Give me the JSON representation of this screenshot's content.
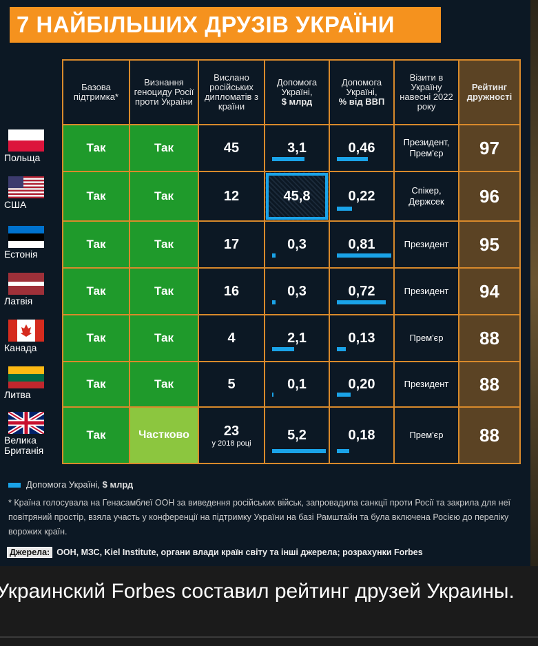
{
  "title": "7 НАЙБІЛЬШИХ ДРУЗІВ УКРАЇНИ",
  "colors": {
    "title_bg": "#f5921e",
    "yes": "#1f9a2b",
    "partial": "#8cc63f",
    "rating_bg": "#5b4324",
    "bar": "#1aa3e8",
    "grid": "#d98a2b",
    "bg": "#0c1824"
  },
  "chart_data": {
    "type": "table",
    "columns": [
      {
        "label": "Базова підтримка*"
      },
      {
        "label": "Визнання геноциду Росії проти України"
      },
      {
        "label": "Вислано російських дипломатів з країни"
      },
      {
        "label": "Допомога Україні,",
        "unit": "$ млрд"
      },
      {
        "label": "Допомога Україні,",
        "unit": "% від ВВП"
      },
      {
        "label": "Візити в Україну навесні 2022 року"
      },
      {
        "label": "Рейтинг дружності"
      }
    ],
    "rows": [
      {
        "country": "Польща",
        "flag": "poland-flag",
        "support": "Так",
        "genocide": "Так",
        "diplomats": "45",
        "diplomats_note": "",
        "aid_usd": "3,1",
        "aid_usd_value": 3.1,
        "aid_gdp": "0,46",
        "aid_gdp_value": 0.46,
        "visits": "Президент, Прем'єр",
        "rating": "97"
      },
      {
        "country": "США",
        "flag": "usa-flag",
        "support": "Так",
        "genocide": "Так",
        "diplomats": "12",
        "diplomats_note": "",
        "aid_usd": "45,8",
        "aid_usd_value": 45.8,
        "aid_usd_highlight": true,
        "aid_gdp": "0,22",
        "aid_gdp_value": 0.22,
        "visits": "Спікер, Держсек",
        "rating": "96"
      },
      {
        "country": "Естонія",
        "flag": "estonia-flag",
        "support": "Так",
        "genocide": "Так",
        "diplomats": "17",
        "diplomats_note": "",
        "aid_usd": "0,3",
        "aid_usd_value": 0.3,
        "aid_gdp": "0,81",
        "aid_gdp_value": 0.81,
        "visits": "Президент",
        "rating": "95"
      },
      {
        "country": "Латвія",
        "flag": "latvia-flag",
        "support": "Так",
        "genocide": "Так",
        "diplomats": "16",
        "diplomats_note": "",
        "aid_usd": "0,3",
        "aid_usd_value": 0.3,
        "aid_gdp": "0,72",
        "aid_gdp_value": 0.72,
        "visits": "Президент",
        "rating": "94"
      },
      {
        "country": "Канада",
        "flag": "canada-flag",
        "support": "Так",
        "genocide": "Так",
        "diplomats": "4",
        "diplomats_note": "",
        "aid_usd": "2,1",
        "aid_usd_value": 2.1,
        "aid_gdp": "0,13",
        "aid_gdp_value": 0.13,
        "visits": "Прем'єр",
        "rating": "88"
      },
      {
        "country": "Литва",
        "flag": "lithuania-flag",
        "support": "Так",
        "genocide": "Так",
        "diplomats": "5",
        "diplomats_note": "",
        "aid_usd": "0,1",
        "aid_usd_value": 0.1,
        "aid_gdp": "0,20",
        "aid_gdp_value": 0.2,
        "visits": "Президент",
        "rating": "88"
      },
      {
        "country": "Велика Британія",
        "flag": "uk-flag",
        "support": "Так",
        "genocide": "Частково",
        "diplomats": "23",
        "diplomats_note": "у 2018 році",
        "aid_usd": "5,2",
        "aid_usd_value": 5.2,
        "aid_gdp": "0,18",
        "aid_gdp_value": 0.18,
        "visits": "Прем'єр",
        "rating": "88"
      }
    ]
  },
  "legend": {
    "label": "Допомога Україні,",
    "unit": "$ млрд"
  },
  "footnote": "* Країна голосувала на Генасамблеї ООН за виведення російських військ, запровадила санкції проти Росії та закрила для неї повітряний простір, взяла участь у конференції на підтримку України на базі Рамштайн та була включена Росією до переліку ворожих країн.",
  "sources": {
    "label": "Джерела:",
    "text": "ООН, МЗС, Kiel Institute, органи влади країн світу та інші джерела; розрахунки Forbes"
  },
  "caption": "Украинский Forbes составил рейтинг друзей Украины."
}
